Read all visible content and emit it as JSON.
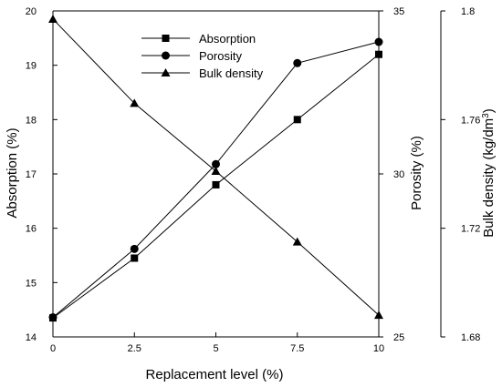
{
  "chart_data": {
    "type": "line",
    "x": [
      0,
      2.5,
      5,
      7.5,
      10
    ],
    "x_tick_labels": [
      "0",
      "2.5",
      "5",
      "7.5",
      "10"
    ],
    "xlabel": "Replacement level (%)",
    "xlim": [
      0,
      10
    ],
    "axes": {
      "left": {
        "label": "Absorption (%)",
        "lim": [
          14,
          20
        ],
        "ticks": [
          14,
          15,
          16,
          17,
          18,
          19,
          20
        ],
        "tick_labels": [
          "14",
          "15",
          "16",
          "17",
          "18",
          "19",
          "20"
        ]
      },
      "right1": {
        "label": "Porosity (%)",
        "lim": [
          25,
          35
        ],
        "ticks": [
          25,
          30,
          35
        ],
        "tick_labels": [
          "25",
          "30",
          "35"
        ]
      },
      "right2": {
        "label_main": "Bulk density (kg/dm",
        "label_sup": "3",
        "label_end": ")",
        "lim": [
          1.68,
          1.8
        ],
        "ticks": [
          1.68,
          1.72,
          1.76,
          1.8
        ],
        "tick_labels": [
          "1.68",
          "1.72",
          "1.76",
          "1.8"
        ]
      }
    },
    "series": [
      {
        "name": "Absorption",
        "axis": "left",
        "marker": "square",
        "values": [
          14.35,
          15.45,
          16.8,
          18.0,
          19.2
        ]
      },
      {
        "name": "Porosity",
        "axis": "right1",
        "marker": "circle",
        "values": [
          25.6,
          27.7,
          30.3,
          33.4,
          34.05
        ]
      },
      {
        "name": "Bulk density",
        "axis": "right2",
        "marker": "triangle",
        "values": [
          1.797,
          1.766,
          1.741,
          1.715,
          1.688
        ]
      }
    ],
    "legend_position": "top-center",
    "grid": false
  }
}
